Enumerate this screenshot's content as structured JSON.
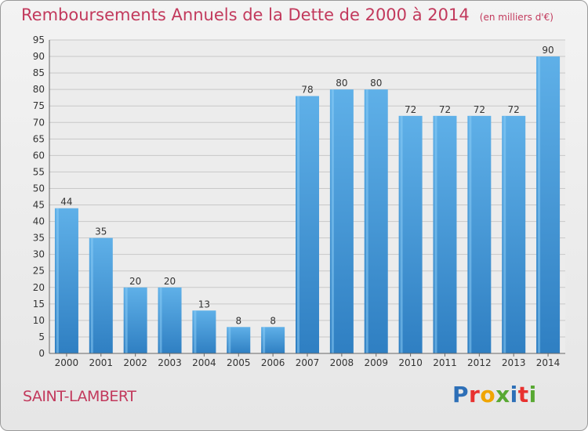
{
  "chart_data": {
    "type": "bar",
    "title": "Remboursements Annuels de la Dette de 2000 à 2014",
    "unit_label": "(en milliers d'€)",
    "categories": [
      "2000",
      "2001",
      "2002",
      "2003",
      "2004",
      "2005",
      "2006",
      "2007",
      "2008",
      "2009",
      "2010",
      "2011",
      "2012",
      "2013",
      "2014"
    ],
    "values": [
      44,
      35,
      20,
      20,
      13,
      8,
      8,
      78,
      80,
      80,
      72,
      72,
      72,
      72,
      90
    ],
    "ylim": [
      0,
      95
    ],
    "ytick_step": 5,
    "grid": true,
    "bar_color": "#4a9fdc",
    "bar_color_dark": "#2f86c9",
    "text_color": "#c2395c"
  },
  "footer": {
    "commune": "SAINT-LAMBERT",
    "logo": "Proxiti",
    "logo_colors": [
      "#2d6fb7",
      "#e8312f",
      "#f0a500",
      "#58a832",
      "#2d6fb7",
      "#e8312f",
      "#58a832"
    ]
  }
}
